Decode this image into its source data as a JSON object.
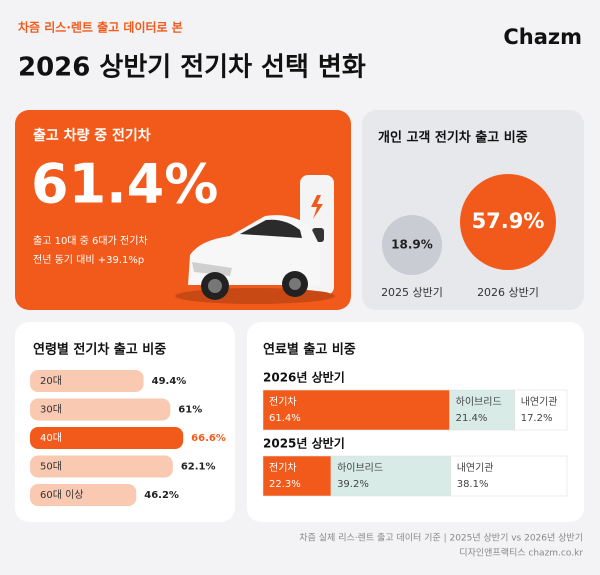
{
  "header": {
    "kicker": "차즘 리스·렌트 출고 데이터로 본",
    "title": "2026 상반기 전기차 선택 변화",
    "logo": "Chazm"
  },
  "hero": {
    "label": "출고 차량 중 전기차",
    "value": "61.4%",
    "lines": [
      "출고 10대 중 6대가 전기차",
      "전년 동기 대비 +39.1%p"
    ]
  },
  "personal": {
    "title": "개인 고객 전기차 출고 비중",
    "categories": [
      "2025 상반기",
      "2026 상반기"
    ],
    "values": [
      18.9,
      57.9
    ],
    "value_labels": [
      "18.9%",
      "57.9%"
    ],
    "colors": [
      "#c9ccd3",
      "#f25a1c"
    ]
  },
  "age": {
    "title": "연령별 전기차 출고 비중",
    "categories": [
      "20대",
      "30대",
      "40대",
      "50대",
      "60대 이상"
    ],
    "values": [
      49.4,
      61,
      66.6,
      62.1,
      46.2
    ],
    "value_labels": [
      "49.4%",
      "61%",
      "66.6%",
      "62.1%",
      "46.2%"
    ],
    "color": "#f9c9b2",
    "highlight": 2,
    "highlight_color": "#f25a1c"
  },
  "fuel": {
    "title": "연료별 출고 비중",
    "series": [
      {
        "name": "전기차",
        "color": "#f25a1c"
      },
      {
        "name": "하이브리드",
        "color": "#d8ebe7"
      },
      {
        "name": "내연기관",
        "color": "#ffffff"
      }
    ],
    "rows": [
      {
        "name": "2026년 상반기",
        "values": [
          61.4,
          21.4,
          17.2
        ],
        "value_labels": [
          "61.4%",
          "21.4%",
          "17.2%"
        ]
      },
      {
        "name": "2025년 상반기",
        "values": [
          22.3,
          39.2,
          38.1
        ],
        "value_labels": [
          "22.3%",
          "39.2%",
          "38.1%"
        ]
      }
    ]
  },
  "footer": [
    "차즘 실제 리스·렌트 출고 데이터 기준 | 2025년 상반기 vs 2026년 상반기",
    "디자인앤프랙티스 chazm.co.kr"
  ]
}
